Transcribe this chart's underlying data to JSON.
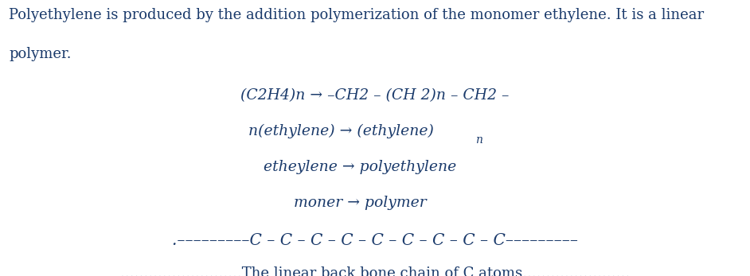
{
  "background_color": "#ffffff",
  "text_color": "#1a3a6b",
  "fig_width": 9.42,
  "fig_height": 3.47,
  "dpi": 100,
  "para_line1": "Polyethylene is produced by the addition polymerization of the monomer ethylene. It is a linear",
  "para_line2": "polymer.",
  "eq_line1": "(C2H4)n → –CH2 – (CH 2)n – CH2 –",
  "eq_line2_main": "n(ethylene) → (ethylene)",
  "eq_line2_sub": "n",
  "eq_line3": "etheylene → polyethylene",
  "eq_line4": "moner → polymer",
  "chain_line": ".–––––––––C – C – C – C – C – C – C – C – C–––––––––",
  "bottom_text": "..........................The linear back bone chain of C atoms.......................",
  "font_size_para": 13.0,
  "font_size_eq": 13.5,
  "font_size_chain": 14.5,
  "font_size_bottom": 13.0,
  "font_size_sub": 10.0
}
